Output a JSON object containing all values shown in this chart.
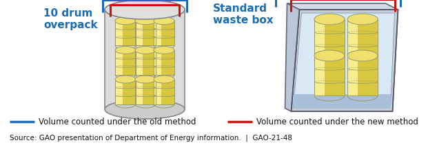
{
  "title_left": "10 drum\noverpack",
  "title_right": "Standard\nwaste box",
  "title_color": "#1A6CB5",
  "legend_old_color": "#1A6CB5",
  "legend_new_color": "#CC1111",
  "legend_old_text": "Volume counted under the old method",
  "legend_new_text": "Volume counted under the new method",
  "source_text": "Source: GAO presentation of Department of Energy information.  |  GAO-21-48",
  "bg_color": "#FFFFFF",
  "drum_fill_top": "#F0E070",
  "drum_fill_body": "#D8C840",
  "drum_fill_light": "#F8EE90",
  "drum_stroke": "#999966",
  "container_fill": "#D8D8D8",
  "container_stroke": "#888888",
  "box_outer_fill": "#C0CCD8",
  "box_inner_fill": "#D8E4EE",
  "box_bottom_fill": "#B0C8DC",
  "box_stroke": "#777788"
}
